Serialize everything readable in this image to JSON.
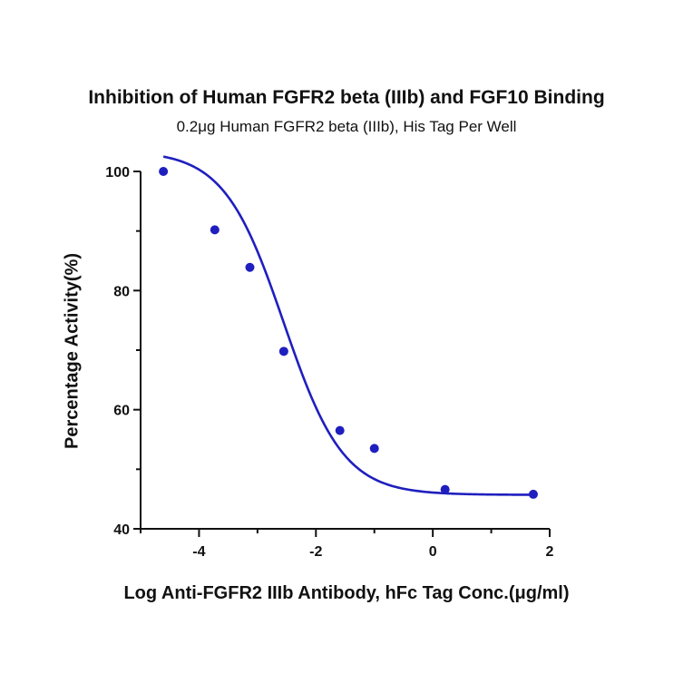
{
  "chart_data": {
    "type": "scatter",
    "title": "Inhibition of Human FGFR2 beta (IIIb) and FGF10 Binding",
    "subtitle": "0.2μg Human FGFR2 beta (IIIb), His Tag Per Well",
    "xlabel": "Log Anti-FGFR2 IIIb Antibody, hFc Tag Conc.(μg/ml)",
    "ylabel": "Percentage Activity(%)",
    "xlim": [
      -5,
      2
    ],
    "ylim": [
      40,
      100
    ],
    "x_ticks": [
      -4,
      -2,
      0,
      2
    ],
    "y_ticks": [
      40,
      60,
      80,
      100
    ],
    "x_tick_labels": [
      "-4",
      "-2",
      "0",
      "2"
    ],
    "y_tick_labels": [
      "40",
      "60",
      "80",
      "100"
    ],
    "grid": false,
    "colors": {
      "series": "#1f1fbf",
      "axis": "#111111"
    },
    "series": [
      {
        "kind": "points",
        "x": [
          -4.61,
          -3.73,
          -3.13,
          -2.55,
          -1.59,
          -1.0,
          0.21,
          1.72
        ],
        "y": [
          100.0,
          90.2,
          83.9,
          69.8,
          56.5,
          53.5,
          46.6,
          45.8
        ]
      },
      {
        "kind": "fit-curve",
        "model": "four-parameter logistic",
        "bottom": 45.7,
        "top": 103.5,
        "log_ic50": -2.55,
        "hill_slope": -0.85,
        "x_range": [
          -4.61,
          1.72
        ]
      }
    ]
  }
}
